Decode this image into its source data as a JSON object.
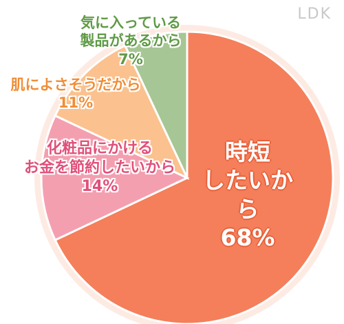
{
  "brand": "LDK",
  "chart_data": {
    "type": "pie",
    "slices": [
      {
        "label_lines": [
          "時短",
          "したいから"
        ],
        "value": 68,
        "value_label": "68%",
        "color": "#f47f5a",
        "text_color": "#ffffff"
      },
      {
        "label_lines": [
          "化粧品にかける",
          "お金を節約したいから"
        ],
        "value": 14,
        "value_label": "14%",
        "color": "#f49fb0",
        "text_color": "#e0507a"
      },
      {
        "label_lines": [
          "肌によさそうだから"
        ],
        "value": 11,
        "value_label": "11%",
        "color": "#fbc18e",
        "text_color": "#f08d36"
      },
      {
        "label_lines": [
          "気に入っている",
          "製品があるから"
        ],
        "value": 7,
        "value_label": "7%",
        "color": "#a7c695",
        "text_color": "#5f9a46"
      }
    ]
  }
}
